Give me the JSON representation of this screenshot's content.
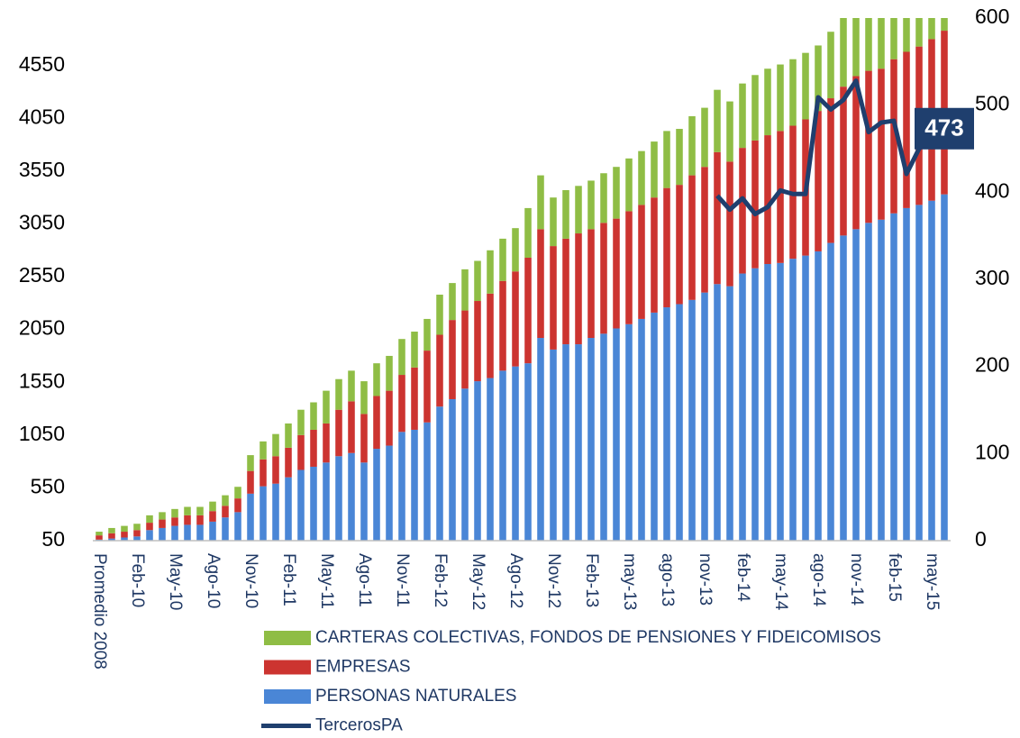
{
  "chart_data": {
    "type": "bar",
    "stacked": true,
    "categories": [
      "Promedio 2008",
      null,
      null,
      "Feb-10",
      null,
      null,
      "May-10",
      null,
      null,
      "Ago-10",
      null,
      null,
      "Nov-10",
      null,
      null,
      "Feb-11",
      null,
      null,
      "May-11",
      null,
      null,
      "Ago-11",
      null,
      null,
      "Nov-11",
      null,
      null,
      "Feb-12",
      null,
      null,
      "May-12",
      null,
      null,
      "Ago-12",
      null,
      null,
      "Nov-12",
      null,
      null,
      "Feb-13",
      null,
      null,
      "may-13",
      null,
      null,
      "ago-13",
      null,
      null,
      "nov-13",
      null,
      null,
      "feb-14",
      null,
      null,
      "may-14",
      null,
      null,
      "ago-14",
      null,
      null,
      "nov-14",
      null,
      null,
      "feb-15",
      null,
      null,
      "may-15",
      null
    ],
    "series": [
      {
        "name": "PERSONAS NATURALES",
        "color": "#4a86d6",
        "values": [
          60,
          70,
          80,
          90,
          150,
          170,
          190,
          200,
          200,
          230,
          270,
          320,
          495,
          565,
          590,
          650,
          720,
          750,
          790,
          850,
          880,
          790,
          920,
          950,
          1080,
          1100,
          1170,
          1320,
          1390,
          1490,
          1560,
          1590,
          1660,
          1700,
          1730,
          1970,
          1860,
          1910,
          1910,
          1970,
          2010,
          2060,
          2100,
          2150,
          2210,
          2260,
          2290,
          2330,
          2400,
          2480,
          2460,
          2580,
          2630,
          2670,
          2680,
          2720,
          2750,
          2790,
          2870,
          2940,
          3000,
          3060,
          3090,
          3150,
          3200,
          3230,
          3270,
          3330
        ]
      },
      {
        "name": "EMPRESAS",
        "color": "#cc3430",
        "values": [
          40,
          50,
          55,
          60,
          70,
          80,
          80,
          90,
          90,
          100,
          110,
          130,
          215,
          255,
          260,
          280,
          330,
          350,
          370,
          440,
          490,
          460,
          500,
          520,
          540,
          590,
          680,
          680,
          750,
          740,
          760,
          800,
          850,
          900,
          1000,
          1030,
          980,
          1000,
          1050,
          1030,
          1050,
          1040,
          1070,
          1080,
          1090,
          1130,
          1130,
          1180,
          1190,
          1250,
          1180,
          1190,
          1210,
          1220,
          1250,
          1260,
          1290,
          1330,
          1370,
          1410,
          1450,
          1440,
          1430,
          1460,
          1480,
          1500,
          1530,
          1550
        ]
      },
      {
        "name": "CARTERAS COLECTIVAS, FONDOS DE PENSIONES Y FIDEICOMISOS",
        "color": "#8fbd45",
        "values": [
          35,
          50,
          55,
          60,
          70,
          70,
          80,
          80,
          80,
          90,
          100,
          110,
          150,
          170,
          210,
          230,
          240,
          260,
          310,
          290,
          290,
          310,
          310,
          330,
          340,
          340,
          300,
          380,
          350,
          390,
          380,
          410,
          400,
          410,
          470,
          510,
          460,
          460,
          450,
          460,
          470,
          490,
          500,
          510,
          530,
          540,
          530,
          560,
          560,
          590,
          570,
          610,
          620,
          630,
          630,
          630,
          630,
          620,
          630,
          750,
          700,
          700,
          680,
          640,
          620,
          570,
          550,
          520
        ]
      },
      {
        "name": "TercerosPA",
        "type": "line",
        "axis": "y2",
        "color": "#1f3f6e",
        "values": [
          null,
          null,
          null,
          null,
          null,
          null,
          null,
          null,
          null,
          null,
          null,
          null,
          null,
          null,
          null,
          null,
          null,
          null,
          null,
          null,
          null,
          null,
          null,
          null,
          null,
          null,
          null,
          null,
          null,
          null,
          null,
          null,
          null,
          null,
          null,
          null,
          null,
          null,
          null,
          null,
          null,
          null,
          null,
          null,
          null,
          null,
          null,
          null,
          null,
          396,
          380,
          393,
          375,
          383,
          402,
          398,
          398,
          509,
          495,
          506,
          528,
          469,
          480,
          482,
          421,
          450,
          465,
          473
        ]
      }
    ],
    "ylim": [
      50,
      5000
    ],
    "yticks": [
      50,
      550,
      1050,
      1550,
      2050,
      2550,
      3050,
      3550,
      4050,
      4550
    ],
    "y2lim": [
      0,
      600
    ],
    "y2ticks": [
      0,
      100,
      200,
      300,
      400,
      500,
      600
    ],
    "grid": false
  }
}
